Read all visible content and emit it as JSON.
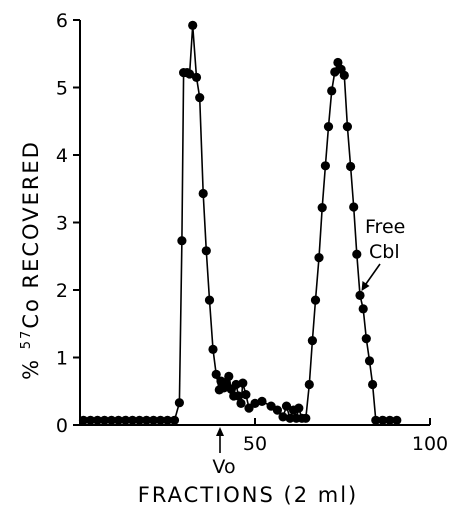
{
  "chart_data": {
    "type": "line",
    "xlabel": "FRACTIONS (2 ml)",
    "ylabel_prefix": "% ",
    "ylabel_sup": "57",
    "ylabel_suffix": "Co RECOVERED",
    "xlim": [
      0,
      100
    ],
    "ylim": [
      0,
      6
    ],
    "xticks": [
      50,
      100
    ],
    "xtick_labels": [
      "50",
      "100"
    ],
    "yticks": [
      0,
      1,
      2,
      3,
      4,
      5,
      6
    ],
    "ytick_labels": [
      "0",
      "1",
      "2",
      "3",
      "4",
      "5",
      "6"
    ],
    "grid": false,
    "annotations": {
      "vo": {
        "label": "Vo",
        "x": 40
      },
      "free_cbl": {
        "line1": "Free",
        "line2": "Cbl",
        "x": 79,
        "y": 2.0
      }
    },
    "series": [
      {
        "values": [
          [
            1,
            0.07
          ],
          [
            3,
            0.07
          ],
          [
            5,
            0.07
          ],
          [
            7,
            0.07
          ],
          [
            9,
            0.07
          ],
          [
            11,
            0.07
          ],
          [
            13,
            0.07
          ],
          [
            15,
            0.07
          ],
          [
            17,
            0.07
          ],
          [
            19,
            0.07
          ],
          [
            21,
            0.07
          ],
          [
            23,
            0.07
          ],
          [
            25,
            0.07
          ],
          [
            27,
            0.07
          ],
          [
            28.4,
            0.33
          ],
          [
            29.1,
            2.73
          ],
          [
            29.6,
            5.22
          ],
          [
            30.6,
            5.22
          ],
          [
            31.3,
            5.2
          ],
          [
            32.2,
            5.92
          ],
          [
            33.3,
            5.15
          ],
          [
            34.2,
            4.85
          ],
          [
            35.2,
            3.43
          ],
          [
            36.1,
            2.58
          ],
          [
            37.0,
            1.85
          ],
          [
            38.0,
            1.12
          ],
          [
            38.9,
            0.75
          ],
          [
            39.8,
            0.52
          ],
          [
            40.3,
            0.65
          ],
          [
            41.1,
            0.55
          ],
          [
            41.8,
            0.63
          ],
          [
            42.5,
            0.72
          ],
          [
            43.2,
            0.53
          ],
          [
            43.9,
            0.43
          ],
          [
            44.6,
            0.6
          ],
          [
            45.3,
            0.43
          ],
          [
            46.0,
            0.32
          ],
          [
            46.5,
            0.62
          ],
          [
            47.4,
            0.45
          ],
          [
            48.3,
            0.25
          ],
          [
            50.0,
            0.32
          ],
          [
            52.0,
            0.35
          ],
          [
            54.6,
            0.28
          ],
          [
            56.4,
            0.22
          ],
          [
            58.0,
            0.12
          ],
          [
            59.0,
            0.28
          ],
          [
            60.0,
            0.1
          ],
          [
            61.0,
            0.22
          ],
          [
            61.8,
            0.1
          ],
          [
            62.5,
            0.25
          ],
          [
            63.4,
            0.1
          ],
          [
            64.5,
            0.1
          ],
          [
            65.5,
            0.6
          ],
          [
            66.4,
            1.25
          ],
          [
            67.3,
            1.85
          ],
          [
            68.3,
            2.48
          ],
          [
            69.2,
            3.22
          ],
          [
            70.1,
            3.84
          ],
          [
            71.0,
            4.42
          ],
          [
            71.9,
            4.95
          ],
          [
            72.8,
            5.23
          ],
          [
            73.7,
            5.37
          ],
          [
            74.6,
            5.27
          ],
          [
            75.5,
            5.18
          ],
          [
            76.4,
            4.42
          ],
          [
            77.3,
            3.83
          ],
          [
            78.2,
            3.23
          ],
          [
            79.1,
            2.53
          ],
          [
            80.0,
            1.92
          ],
          [
            80.9,
            1.72
          ],
          [
            81.8,
            1.28
          ],
          [
            82.7,
            0.95
          ],
          [
            83.6,
            0.6
          ],
          [
            84.5,
            0.07
          ],
          [
            86.5,
            0.07
          ],
          [
            88.5,
            0.07
          ],
          [
            90.5,
            0.07
          ]
        ]
      }
    ]
  }
}
